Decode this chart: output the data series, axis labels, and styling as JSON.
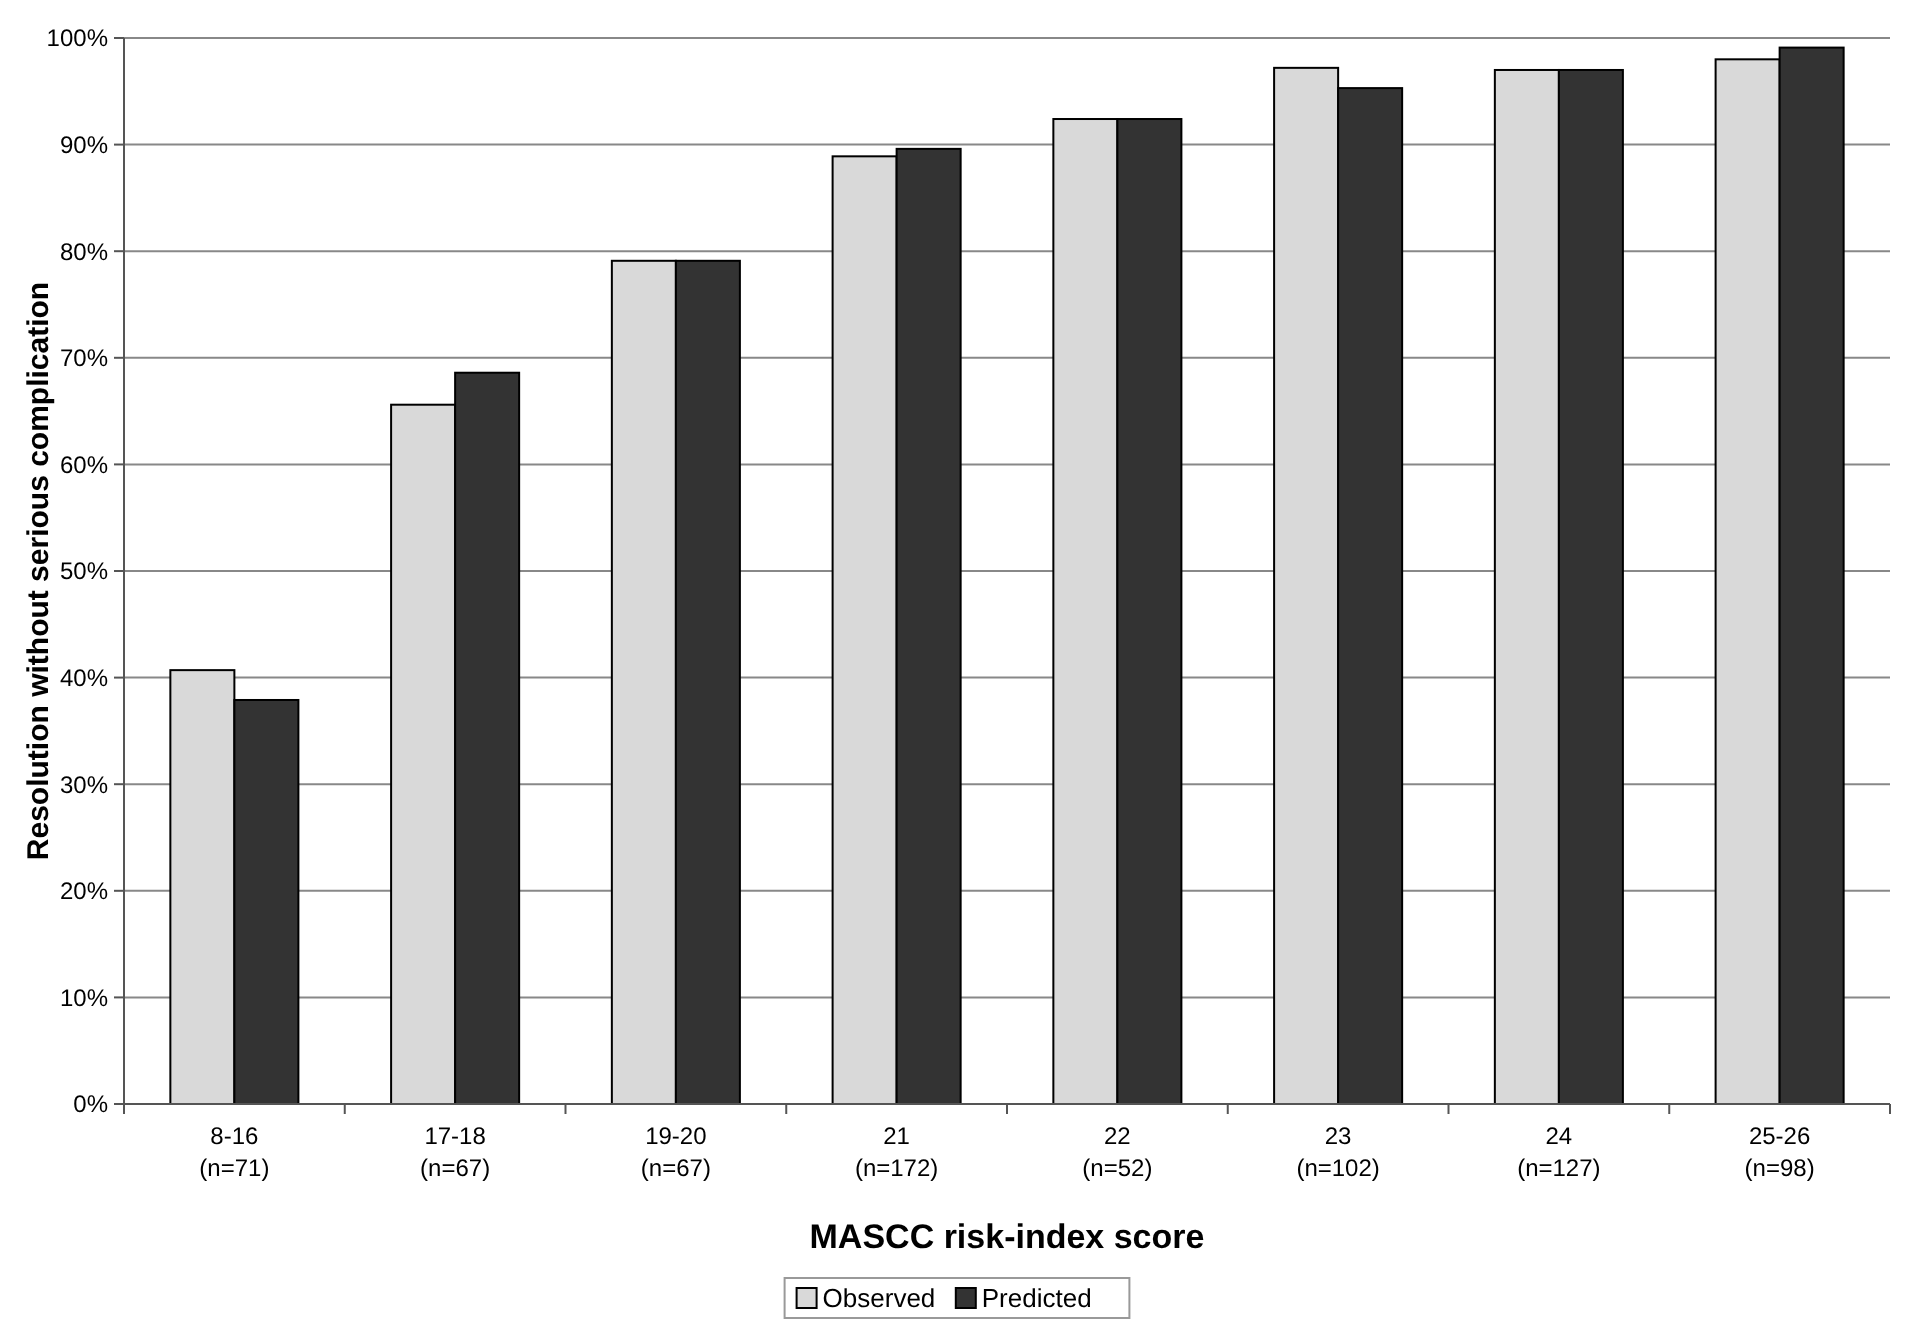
{
  "chart_data": {
    "type": "bar",
    "xlabel": "MASCC risk-index score",
    "ylabel": "Resolution without serious complication",
    "categories": [
      "8-16\n(n=71)",
      "17-18\n(n=67)",
      "19-20\n(n=67)",
      "21\n(n=172)",
      "22\n(n=52)",
      "23\n(n=102)",
      "24\n(n=127)",
      "25-26\n(n=98)"
    ],
    "series": [
      {
        "name": "Observed",
        "color": "#d9d9d9",
        "values": [
          40.7,
          65.6,
          79.1,
          88.9,
          92.4,
          97.2,
          97.0,
          98.0
        ]
      },
      {
        "name": "Predicted",
        "color": "#333333",
        "values": [
          37.9,
          68.6,
          79.1,
          89.6,
          92.4,
          95.3,
          97.0,
          99.1
        ]
      }
    ],
    "ylim": [
      0,
      100
    ],
    "yticks": [
      {
        "value": 0,
        "label": "0%"
      },
      {
        "value": 10,
        "label": "10%"
      },
      {
        "value": 20,
        "label": "20%"
      },
      {
        "value": 30,
        "label": "30%"
      },
      {
        "value": 40,
        "label": "40%"
      },
      {
        "value": 50,
        "label": "50%"
      },
      {
        "value": 60,
        "label": "60%"
      },
      {
        "value": 70,
        "label": "70%"
      },
      {
        "value": 80,
        "label": "80%"
      },
      {
        "value": 90,
        "label": "90%"
      },
      {
        "value": 100,
        "label": "100%"
      }
    ],
    "grid": "y",
    "legend": "bottom"
  }
}
